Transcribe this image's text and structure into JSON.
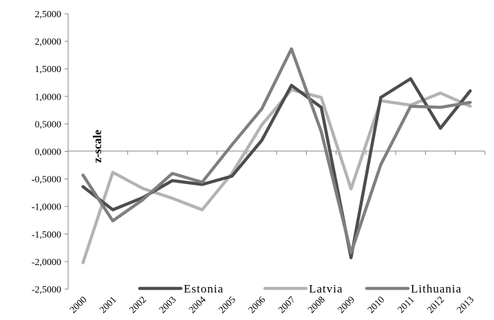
{
  "chart_data": {
    "type": "line",
    "ylabel": "z-scale",
    "ylim": [
      -2.5,
      2.5
    ],
    "y_ticks": [
      "2,5000",
      "2,0000",
      "1,5000",
      "1,0000",
      "0,5000",
      "0,0000",
      "-0,5000",
      "-1,0000",
      "-1,5000",
      "-2,0000",
      "-2,5000"
    ],
    "categories": [
      "2000",
      "2001",
      "2002",
      "2003",
      "2004",
      "2005",
      "2006",
      "2007",
      "2008",
      "2009",
      "2010",
      "2011",
      "2012",
      "2013"
    ],
    "legend_position": "bottom-right",
    "series": [
      {
        "name": "Estonia",
        "color": "#4d4d4d",
        "values": [
          -0.64,
          -1.06,
          -0.84,
          -0.53,
          -0.6,
          -0.45,
          0.2,
          1.2,
          0.8,
          -1.93,
          0.98,
          1.32,
          0.42,
          1.1
        ]
      },
      {
        "name": "Latvia",
        "color": "#b3b3b3",
        "values": [
          -2.02,
          -0.38,
          -0.67,
          -0.85,
          -1.06,
          -0.4,
          0.48,
          1.12,
          0.98,
          -0.68,
          0.92,
          0.84,
          1.06,
          0.82
        ]
      },
      {
        "name": "Lithuania",
        "color": "#7f7f7f",
        "values": [
          -0.43,
          -1.26,
          -0.88,
          -0.4,
          -0.56,
          0.12,
          0.77,
          1.86,
          0.36,
          -1.84,
          -0.24,
          0.82,
          0.8,
          0.89
        ]
      }
    ]
  }
}
